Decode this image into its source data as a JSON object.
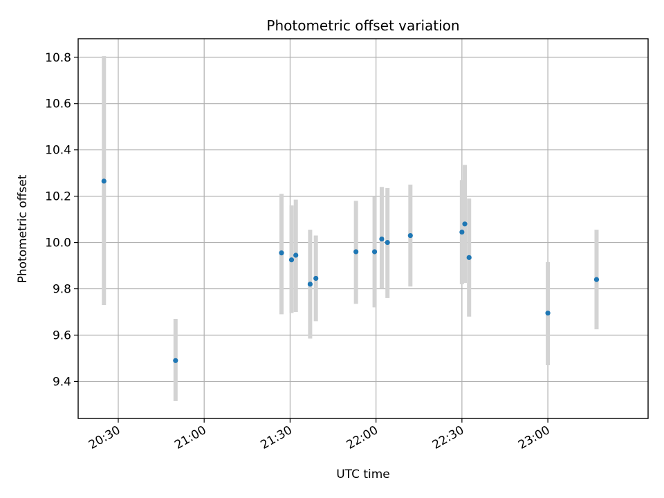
{
  "chart_data": {
    "type": "scatter",
    "title": "Photometric offset variation",
    "xlabel": "UTC time",
    "ylabel": "Photometric offset",
    "grid": true,
    "x_axis": {
      "unit": "UTC time (HH:MM)",
      "range": [
        "20:16",
        "23:35"
      ],
      "ticks": [
        "20:30",
        "21:00",
        "21:30",
        "22:00",
        "22:30",
        "23:00"
      ]
    },
    "y_axis": {
      "range": [
        9.24,
        10.88
      ],
      "ticks": [
        9.4,
        9.6,
        9.8,
        10.0,
        10.2,
        10.4,
        10.6,
        10.8
      ]
    },
    "colors": {
      "points": "#1f77b4",
      "error_bars": "#d3d3d3",
      "grid": "#b0b0b0"
    },
    "points": [
      {
        "time": "20:25",
        "y": 10.265,
        "ylo": 9.73,
        "yhi": 10.805
      },
      {
        "time": "20:50",
        "y": 9.49,
        "ylo": 9.315,
        "yhi": 9.67
      },
      {
        "time": "21:27",
        "y": 9.955,
        "ylo": 9.69,
        "yhi": 10.21
      },
      {
        "time": "21:30:30",
        "y": 9.925,
        "ylo": 9.695,
        "yhi": 10.16
      },
      {
        "time": "21:32",
        "y": 9.945,
        "ylo": 9.7,
        "yhi": 10.185
      },
      {
        "time": "21:37",
        "y": 9.82,
        "ylo": 9.585,
        "yhi": 10.055
      },
      {
        "time": "21:39",
        "y": 9.845,
        "ylo": 9.66,
        "yhi": 10.03
      },
      {
        "time": "21:53",
        "y": 9.96,
        "ylo": 9.735,
        "yhi": 10.18
      },
      {
        "time": "21:59:30",
        "y": 9.96,
        "ylo": 9.72,
        "yhi": 10.2
      },
      {
        "time": "22:02",
        "y": 10.015,
        "ylo": 9.8,
        "yhi": 10.24
      },
      {
        "time": "22:04",
        "y": 10.0,
        "ylo": 9.76,
        "yhi": 10.235
      },
      {
        "time": "22:12",
        "y": 10.03,
        "ylo": 9.81,
        "yhi": 10.25
      },
      {
        "time": "22:30",
        "y": 10.045,
        "ylo": 9.82,
        "yhi": 10.27
      },
      {
        "time": "22:31",
        "y": 10.08,
        "ylo": 9.825,
        "yhi": 10.335
      },
      {
        "time": "22:32:30",
        "y": 9.935,
        "ylo": 9.68,
        "yhi": 10.19
      },
      {
        "time": "23:00",
        "y": 9.695,
        "ylo": 9.47,
        "yhi": 9.915
      },
      {
        "time": "23:17",
        "y": 9.84,
        "ylo": 9.625,
        "yhi": 10.055
      }
    ]
  }
}
